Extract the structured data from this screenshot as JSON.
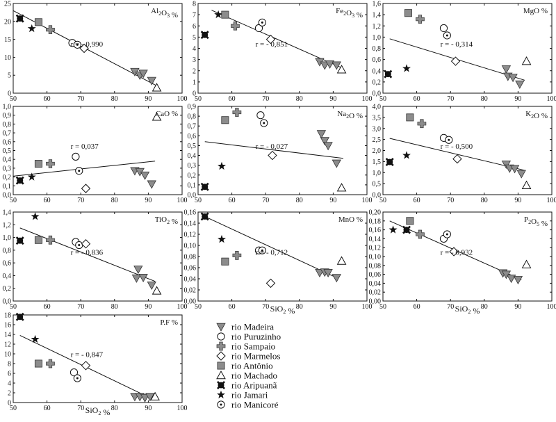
{
  "legend": [
    {
      "key": "madeira",
      "label": "rio Madeira",
      "marker": "triangle-down-gray"
    },
    {
      "key": "puruzinho",
      "label": "rio Puruzinho",
      "marker": "circle-open"
    },
    {
      "key": "sampaio",
      "label": "rio Sampaio",
      "marker": "cross-gray"
    },
    {
      "key": "marmelos",
      "label": "rio Marmelos",
      "marker": "diamond-open"
    },
    {
      "key": "antonio",
      "label": "rio Antônio",
      "marker": "square-gray"
    },
    {
      "key": "machado",
      "label": "rio Machado",
      "marker": "triangle-up-open"
    },
    {
      "key": "aripuana",
      "label": "rio Aripuanã",
      "marker": "x-black"
    },
    {
      "key": "jamari",
      "label": "rio Jamari",
      "marker": "star-black"
    },
    {
      "key": "manicore",
      "label": "rio Manicoré",
      "marker": "circle-dot"
    }
  ],
  "chart_data": [
    {
      "type": "scatter",
      "title": "Al2O3 %",
      "r_label": "r = - 0,990",
      "xlabel": "",
      "xlim": [
        50,
        100
      ],
      "ylim": [
        0,
        25
      ],
      "xticks": [
        50,
        60,
        70,
        80,
        90,
        100
      ],
      "yticks": [
        0,
        5,
        10,
        15,
        20,
        25
      ],
      "ytick_labels": [
        "0",
        "5",
        "10",
        "15",
        "20",
        "25"
      ],
      "trendline": [
        [
          50,
          23.0
        ],
        [
          93,
          1.8
        ]
      ],
      "points": [
        {
          "series": "aripuana",
          "x": 52,
          "y": 20.8
        },
        {
          "series": "jamari",
          "x": 55.5,
          "y": 18.0
        },
        {
          "series": "antonio",
          "x": 57.5,
          "y": 19.8
        },
        {
          "series": "sampaio",
          "x": 61,
          "y": 17.7
        },
        {
          "series": "puruzinho",
          "x": 67.5,
          "y": 14.0
        },
        {
          "series": "manicore",
          "x": 69,
          "y": 13.5
        },
        {
          "series": "marmelos",
          "x": 71,
          "y": 12.5
        },
        {
          "series": "madeira",
          "x": 86,
          "y": 6.0
        },
        {
          "series": "madeira",
          "x": 87.5,
          "y": 5.0
        },
        {
          "series": "madeira",
          "x": 88.5,
          "y": 5.5
        },
        {
          "series": "madeira",
          "x": 91,
          "y": 3.5
        },
        {
          "series": "machado",
          "x": 92.5,
          "y": 1.5
        }
      ]
    },
    {
      "type": "scatter",
      "title": "Fe2O3 %",
      "r_label": "r = - 0,851",
      "xlabel": "",
      "xlim": [
        50,
        100
      ],
      "ylim": [
        0,
        8
      ],
      "xticks": [
        50,
        60,
        70,
        80,
        90,
        100
      ],
      "yticks": [
        0,
        1,
        2,
        3,
        4,
        5,
        6,
        7,
        8
      ],
      "ytick_labels": [
        "0",
        "1",
        "2",
        "3",
        "4",
        "5",
        "6",
        "7",
        "8"
      ],
      "trendline": [
        [
          54,
          7.4
        ],
        [
          93,
          2.2
        ]
      ],
      "points": [
        {
          "series": "aripuana",
          "x": 52,
          "y": 5.2
        },
        {
          "series": "jamari",
          "x": 56,
          "y": 7.0
        },
        {
          "series": "antonio",
          "x": 58,
          "y": 7.0
        },
        {
          "series": "sampaio",
          "x": 61,
          "y": 6.0
        },
        {
          "series": "puruzinho",
          "x": 68,
          "y": 5.8
        },
        {
          "series": "manicore",
          "x": 69,
          "y": 6.3
        },
        {
          "series": "marmelos",
          "x": 71.5,
          "y": 4.8
        },
        {
          "series": "madeira",
          "x": 86,
          "y": 2.8
        },
        {
          "series": "madeira",
          "x": 87.5,
          "y": 2.5
        },
        {
          "series": "madeira",
          "x": 89,
          "y": 2.6
        },
        {
          "series": "madeira",
          "x": 91,
          "y": 2.5
        },
        {
          "series": "machado",
          "x": 92.5,
          "y": 2.1
        }
      ]
    },
    {
      "type": "scatter",
      "title": "MgO %",
      "r_label": "r = - 0,314",
      "xlabel": "",
      "xlim": [
        50,
        100
      ],
      "ylim": [
        0,
        1.6
      ],
      "xticks": [
        50,
        60,
        70,
        80,
        90,
        100
      ],
      "yticks": [
        0,
        0.2,
        0.4,
        0.6,
        0.8,
        1.0,
        1.2,
        1.4,
        1.6
      ],
      "ytick_labels": [
        "0,0",
        "0,2",
        "0,4",
        "0,6",
        "0,8",
        "1,0",
        "1,2",
        "1,4",
        "1,6"
      ],
      "trendline": [
        [
          52,
          0.97
        ],
        [
          92,
          0.23
        ]
      ],
      "points": [
        {
          "series": "aripuana",
          "x": 51.5,
          "y": 0.34
        },
        {
          "series": "jamari",
          "x": 57,
          "y": 0.44
        },
        {
          "series": "antonio",
          "x": 57.5,
          "y": 1.43
        },
        {
          "series": "sampaio",
          "x": 61,
          "y": 1.32
        },
        {
          "series": "puruzinho",
          "x": 68,
          "y": 1.16
        },
        {
          "series": "manicore",
          "x": 69,
          "y": 1.03
        },
        {
          "series": "marmelos",
          "x": 71.5,
          "y": 0.57
        },
        {
          "series": "madeira",
          "x": 86.5,
          "y": 0.43
        },
        {
          "series": "madeira",
          "x": 87,
          "y": 0.3
        },
        {
          "series": "madeira",
          "x": 88.5,
          "y": 0.28
        },
        {
          "series": "madeira",
          "x": 90.5,
          "y": 0.16
        },
        {
          "series": "machado",
          "x": 92.5,
          "y": 0.57
        }
      ]
    },
    {
      "type": "scatter",
      "title": "CaO %",
      "r_label": "r = 0,037",
      "xlabel": "",
      "xlim": [
        50,
        100
      ],
      "ylim": [
        0,
        1.0
      ],
      "xticks": [
        50,
        60,
        70,
        80,
        90,
        100
      ],
      "yticks": [
        0,
        0.1,
        0.2,
        0.3,
        0.4,
        0.5,
        0.6,
        0.7,
        0.8,
        0.9,
        1.0
      ],
      "ytick_labels": [
        "0,0",
        "0,1",
        "0,2",
        "0,3",
        "0,4",
        "0,5",
        "0,6",
        "0,7",
        "0,8",
        "0,9",
        "1,0"
      ],
      "trendline": [
        [
          50,
          0.21
        ],
        [
          92,
          0.38
        ]
      ],
      "points": [
        {
          "series": "aripuana",
          "x": 52,
          "y": 0.16
        },
        {
          "series": "jamari",
          "x": 55.5,
          "y": 0.2
        },
        {
          "series": "antonio",
          "x": 57.5,
          "y": 0.35
        },
        {
          "series": "sampaio",
          "x": 61,
          "y": 0.35
        },
        {
          "series": "puruzinho",
          "x": 68.5,
          "y": 0.43
        },
        {
          "series": "manicore",
          "x": 69.5,
          "y": 0.27
        },
        {
          "series": "marmelos",
          "x": 71.5,
          "y": 0.07
        },
        {
          "series": "madeira",
          "x": 86,
          "y": 0.27
        },
        {
          "series": "madeira",
          "x": 87.5,
          "y": 0.26
        },
        {
          "series": "madeira",
          "x": 89,
          "y": 0.22
        },
        {
          "series": "madeira",
          "x": 91,
          "y": 0.12
        },
        {
          "series": "machado",
          "x": 92.5,
          "y": 0.88
        }
      ]
    },
    {
      "type": "scatter",
      "title": "Na2O %",
      "r_label": "r = - 0,027",
      "xlabel": "",
      "xlim": [
        50,
        100
      ],
      "ylim": [
        0,
        0.9
      ],
      "xticks": [
        50,
        60,
        70,
        80,
        90,
        100
      ],
      "yticks": [
        0,
        0.1,
        0.2,
        0.3,
        0.4,
        0.5,
        0.6,
        0.7,
        0.8,
        0.9
      ],
      "ytick_labels": [
        "0,0",
        "0,1",
        "0,2",
        "0,3",
        "0,4",
        "0,5",
        "0,6",
        "0,7",
        "0,8",
        "0,9"
      ],
      "trendline": [
        [
          52,
          0.54
        ],
        [
          93,
          0.37
        ]
      ],
      "points": [
        {
          "series": "aripuana",
          "x": 52,
          "y": 0.08
        },
        {
          "series": "jamari",
          "x": 57,
          "y": 0.29
        },
        {
          "series": "antonio",
          "x": 58,
          "y": 0.76
        },
        {
          "series": "sampaio",
          "x": 61.5,
          "y": 0.84
        },
        {
          "series": "puruzinho",
          "x": 68.5,
          "y": 0.81
        },
        {
          "series": "manicore",
          "x": 69.5,
          "y": 0.73
        },
        {
          "series": "marmelos",
          "x": 72,
          "y": 0.4
        },
        {
          "series": "madeira",
          "x": 86.5,
          "y": 0.62
        },
        {
          "series": "madeira",
          "x": 87.5,
          "y": 0.55
        },
        {
          "series": "madeira",
          "x": 88.5,
          "y": 0.5
        },
        {
          "series": "madeira",
          "x": 91,
          "y": 0.32
        },
        {
          "series": "machado",
          "x": 92.5,
          "y": 0.07
        }
      ]
    },
    {
      "type": "scatter",
      "title": "K2O %",
      "r_label": "r = - 0,500",
      "xlabel": "",
      "xlim": [
        50,
        100
      ],
      "ylim": [
        0,
        4.0
      ],
      "xticks": [
        50,
        60,
        70,
        80,
        90,
        100
      ],
      "yticks": [
        0,
        0.5,
        1.0,
        1.5,
        2.0,
        2.5,
        3.0,
        3.5,
        4.0
      ],
      "ytick_labels": [
        "0,0",
        "0,5",
        "1,0",
        "1,5",
        "2,0",
        "2,5",
        "3,0",
        "3,5",
        "4,0"
      ],
      "trendline": [
        [
          52,
          2.55
        ],
        [
          92,
          1.1
        ]
      ],
      "points": [
        {
          "series": "aripuana",
          "x": 52,
          "y": 1.48
        },
        {
          "series": "jamari",
          "x": 57,
          "y": 1.78
        },
        {
          "series": "antonio",
          "x": 58,
          "y": 3.5
        },
        {
          "series": "sampaio",
          "x": 61.5,
          "y": 3.22
        },
        {
          "series": "puruzinho",
          "x": 68,
          "y": 2.57
        },
        {
          "series": "manicore",
          "x": 69.5,
          "y": 2.48
        },
        {
          "series": "marmelos",
          "x": 72,
          "y": 1.62
        },
        {
          "series": "madeira",
          "x": 86.5,
          "y": 1.38
        },
        {
          "series": "madeira",
          "x": 87.5,
          "y": 1.2
        },
        {
          "series": "madeira",
          "x": 89,
          "y": 1.18
        },
        {
          "series": "madeira",
          "x": 91,
          "y": 0.95
        },
        {
          "series": "machado",
          "x": 92.5,
          "y": 0.42
        }
      ]
    },
    {
      "type": "scatter",
      "title": "TiO2 %",
      "r_label": "r = - 0,836",
      "xlabel": "",
      "xlim": [
        50,
        100
      ],
      "ylim": [
        0,
        1.4
      ],
      "xticks": [
        50,
        60,
        70,
        80,
        90,
        100
      ],
      "yticks": [
        0,
        0.2,
        0.4,
        0.6,
        0.8,
        1.0,
        1.2,
        1.4
      ],
      "ytick_labels": [
        "0,0",
        "0,2",
        "0,4",
        "0,6",
        "0,8",
        "1,0",
        "1,2",
        "1,4"
      ],
      "trendline": [
        [
          52,
          1.15
        ],
        [
          92,
          0.31
        ]
      ],
      "points": [
        {
          "series": "aripuana",
          "x": 52,
          "y": 0.95
        },
        {
          "series": "jamari",
          "x": 56.5,
          "y": 1.33
        },
        {
          "series": "antonio",
          "x": 57.5,
          "y": 0.96
        },
        {
          "series": "sampaio",
          "x": 61,
          "y": 0.96
        },
        {
          "series": "puruzinho",
          "x": 68.5,
          "y": 0.93
        },
        {
          "series": "manicore",
          "x": 69.5,
          "y": 0.88
        },
        {
          "series": "marmelos",
          "x": 71.5,
          "y": 0.9
        },
        {
          "series": "madeira",
          "x": 87,
          "y": 0.5
        },
        {
          "series": "madeira",
          "x": 86.5,
          "y": 0.36
        },
        {
          "series": "madeira",
          "x": 88.5,
          "y": 0.37
        },
        {
          "series": "madeira",
          "x": 91,
          "y": 0.25
        },
        {
          "series": "machado",
          "x": 92.5,
          "y": 0.16
        }
      ]
    },
    {
      "type": "scatter",
      "title": "MnO %",
      "r_label": "r = - 0,712",
      "xlabel": "SiO2 %",
      "xlim": [
        50,
        100
      ],
      "ylim": [
        0,
        0.16
      ],
      "xticks": [
        50,
        60,
        70,
        80,
        90,
        100
      ],
      "yticks": [
        0,
        0.02,
        0.04,
        0.06,
        0.08,
        0.1,
        0.12,
        0.14,
        0.16
      ],
      "ytick_labels": [
        "0,00",
        "0,02",
        "0,04",
        "0,06",
        "0,08",
        "0,10",
        "0,12",
        "0,14",
        "0,16"
      ],
      "trendline": [
        [
          52,
          0.152
        ],
        [
          91,
          0.042
        ]
      ],
      "points": [
        {
          "series": "aripuana",
          "x": 52,
          "y": 0.152
        },
        {
          "series": "jamari",
          "x": 57,
          "y": 0.111
        },
        {
          "series": "antonio",
          "x": 58,
          "y": 0.071
        },
        {
          "series": "sampaio",
          "x": 61.5,
          "y": 0.082
        },
        {
          "series": "puruzinho",
          "x": 68,
          "y": 0.091
        },
        {
          "series": "manicore",
          "x": 69,
          "y": 0.091
        },
        {
          "series": "marmelos",
          "x": 71.5,
          "y": 0.032
        },
        {
          "series": "madeira",
          "x": 86,
          "y": 0.051
        },
        {
          "series": "madeira",
          "x": 87.5,
          "y": 0.052
        },
        {
          "series": "madeira",
          "x": 88.5,
          "y": 0.051
        },
        {
          "series": "madeira",
          "x": 91,
          "y": 0.042
        },
        {
          "series": "machado",
          "x": 92.5,
          "y": 0.072
        }
      ]
    },
    {
      "type": "scatter",
      "title": "P2O5 %",
      "r_label": "r = - 0,932",
      "xlabel": "SiO2 %",
      "xlim": [
        50,
        100
      ],
      "ylim": [
        0,
        0.2
      ],
      "xticks": [
        50,
        60,
        70,
        80,
        90,
        100
      ],
      "yticks": [
        0,
        0.02,
        0.04,
        0.06,
        0.08,
        0.1,
        0.12,
        0.14,
        0.16,
        0.18,
        0.2
      ],
      "ytick_labels": [
        "0,00",
        "0,02",
        "0,04",
        "0,06",
        "0,08",
        "0,10",
        "0,12",
        "0,14",
        "0,16",
        "0,18",
        "0,20"
      ],
      "trendline": [
        [
          52,
          0.18
        ],
        [
          91,
          0.048
        ]
      ],
      "points": [
        {
          "series": "jamari",
          "x": 53,
          "y": 0.16
        },
        {
          "series": "aripuana",
          "x": 57,
          "y": 0.16
        },
        {
          "series": "antonio",
          "x": 58,
          "y": 0.18
        },
        {
          "series": "sampaio",
          "x": 61,
          "y": 0.15
        },
        {
          "series": "puruzinho",
          "x": 68,
          "y": 0.14
        },
        {
          "series": "manicore",
          "x": 69,
          "y": 0.15
        },
        {
          "series": "marmelos",
          "x": 71,
          "y": 0.111
        },
        {
          "series": "madeira",
          "x": 85.5,
          "y": 0.063
        },
        {
          "series": "madeira",
          "x": 86.5,
          "y": 0.06
        },
        {
          "series": "madeira",
          "x": 88,
          "y": 0.051
        },
        {
          "series": "madeira",
          "x": 90,
          "y": 0.048
        },
        {
          "series": "machado",
          "x": 92.5,
          "y": 0.082
        }
      ]
    },
    {
      "type": "scatter",
      "title": "P.F %",
      "r_label": "r = - 0,847",
      "xlabel": "SiO2 %",
      "xlim": [
        50,
        100
      ],
      "ylim": [
        0,
        18
      ],
      "xticks": [
        50,
        60,
        70,
        80,
        90,
        100
      ],
      "yticks": [
        0,
        2,
        4,
        6,
        8,
        10,
        12,
        14,
        16,
        18
      ],
      "ytick_labels": [
        "0",
        "2",
        "4",
        "6",
        "8",
        "10",
        "12",
        "14",
        "16",
        "18"
      ],
      "trendline": [
        [
          52,
          13.8
        ],
        [
          91,
          0.8
        ]
      ],
      "points": [
        {
          "series": "aripuana",
          "x": 52,
          "y": 17.6
        },
        {
          "series": "jamari",
          "x": 56.5,
          "y": 13.0
        },
        {
          "series": "antonio",
          "x": 57.5,
          "y": 8.0
        },
        {
          "series": "sampaio",
          "x": 61,
          "y": 8.0
        },
        {
          "series": "puruzinho",
          "x": 68,
          "y": 6.2
        },
        {
          "series": "manicore",
          "x": 69,
          "y": 5.0
        },
        {
          "series": "marmelos",
          "x": 71.5,
          "y": 7.6
        },
        {
          "series": "madeira",
          "x": 86,
          "y": 1.2
        },
        {
          "series": "madeira",
          "x": 87.5,
          "y": 1.2
        },
        {
          "series": "madeira",
          "x": 89,
          "y": 1.0
        },
        {
          "series": "madeira",
          "x": 90.5,
          "y": 1.2
        },
        {
          "series": "machado",
          "x": 92,
          "y": 1.2
        }
      ]
    }
  ]
}
